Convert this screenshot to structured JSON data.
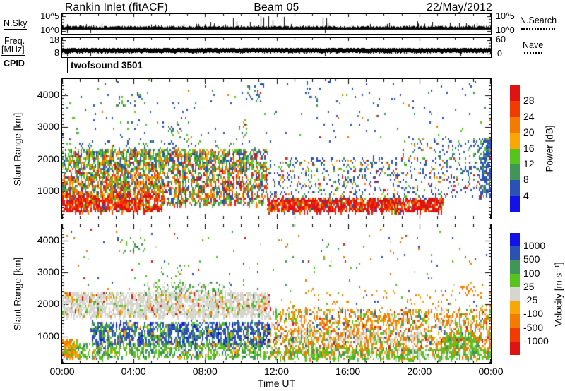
{
  "header": {
    "station_title": "Rankin Inlet (fitACF)",
    "beam": "Beam 05",
    "date": "22/May/2012"
  },
  "left_labels": {
    "nsky": "N.Sky",
    "nsky_top": "10^5",
    "nsky_bottom": "10^0",
    "freq_line1": "Freq.",
    "freq_line2": "[MHz]",
    "freq_top": "18",
    "freq_bottom": "8",
    "cpid": "CPID"
  },
  "right_labels": {
    "nsearch": "N.Search",
    "nsearch_top": "10^5",
    "nsearch_bottom": "10^0",
    "nave": "Nave",
    "nave_top": "60",
    "nave_bottom": "0"
  },
  "cpid_value": "twofsound 3501",
  "axes": {
    "x_title": "Time UT",
    "x_tick_hours": [
      0,
      4,
      8,
      12,
      16,
      20,
      24
    ],
    "x_tick_labels": [
      "00:00",
      "04:00",
      "08:00",
      "12:00",
      "16:00",
      "20:00",
      "00:00"
    ],
    "y_title": "Slant Range [km]",
    "y_tick_values": [
      1000,
      2000,
      3000,
      4000
    ],
    "y_tick_labels": [
      "1000",
      "2000",
      "3000",
      "4000"
    ]
  },
  "palette": {
    "red": "#e11212",
    "redOrange": "#f23b00",
    "orange": "#f57a00",
    "yellowOrange": "#f9a702",
    "green": "#55c41e",
    "teal": "#3f9656",
    "blue": "#2a52b5",
    "brightBlue": "#1212e8",
    "grey": "#d6d6ce"
  },
  "colorbars": {
    "power": {
      "title": "Power [dB]",
      "labels": [
        "28",
        "24",
        "20",
        "16",
        "12",
        "8",
        "4"
      ],
      "colors": [
        "red",
        "redOrange",
        "orange",
        "yellowOrange",
        "green",
        "teal",
        "blue",
        "brightBlue"
      ]
    },
    "velocity": {
      "title": "Velocity [m s⁻¹]",
      "labels": [
        "1000",
        "500",
        "100",
        "25",
        "-25",
        "-100",
        "-500",
        "-1000"
      ],
      "colors": [
        "brightBlue",
        "blue",
        "teal",
        "green",
        "grey",
        "yellowOrange",
        "orange",
        "redOrange",
        "red"
      ]
    }
  },
  "chart_data": {
    "type": "scatter",
    "title": "Rankin Inlet (fitACF) Beam 05 22/May/2012 range-time summary plot",
    "x_range_hours": [
      0,
      24
    ],
    "range_km": [
      150,
      4500
    ],
    "panels": {
      "nsky": {
        "label": "N.Sky",
        "scale": "log 10^0 to 10^5",
        "baseline_log": 1.5,
        "spikes": [
          [
            2.2,
            0.35
          ],
          [
            5.0,
            0.3
          ],
          [
            7.5,
            0.35
          ],
          [
            9.55,
            0.8
          ],
          [
            9.75,
            0.55
          ],
          [
            10.5,
            0.5
          ],
          [
            11.1,
            0.95
          ],
          [
            11.25,
            0.85
          ],
          [
            11.55,
            0.95
          ],
          [
            11.8,
            0.6
          ],
          [
            12.4,
            0.9
          ],
          [
            14.6,
            0.85
          ],
          [
            14.8,
            0.8
          ],
          [
            18.3,
            0.45
          ],
          [
            19.9,
            0.55
          ],
          [
            20.7,
            0.5
          ],
          [
            21.7,
            0.45
          ],
          [
            22.6,
            0.4
          ],
          [
            23.2,
            0.45
          ]
        ],
        "dropouts": [
          0.28,
          1.6,
          14.7
        ]
      },
      "freq": {
        "label": "Freq [MHz]",
        "scale": "8 to 18 MHz",
        "band_mhz": [
          9,
          12
        ],
        "dropouts": [
          0.28,
          1.6,
          14.7,
          22.3
        ]
      },
      "power": {
        "seed": 7,
        "units": "dB",
        "regions": [
          {
            "t": [
              0,
              5.6
            ],
            "r": [
              420,
              950
            ],
            "density": 1.4,
            "streak": true,
            "colors": {
              "red": 0.52,
              "redOrange": 0.2,
              "orange": 0.12,
              "yellowOrange": 0.05,
              "green": 0.06,
              "blue": 0.05
            }
          },
          {
            "t": [
              0,
              5.6
            ],
            "r": [
              950,
              1700
            ],
            "density": 0.9,
            "streak": true,
            "colors": {
              "orange": 0.2,
              "redOrange": 0.12,
              "red": 0.12,
              "green": 0.2,
              "teal": 0.12,
              "yellowOrange": 0.1,
              "blue": 0.14
            }
          },
          {
            "t": [
              0,
              11.5
            ],
            "r": [
              1700,
              2350
            ],
            "density": 0.9,
            "streak": true,
            "colors": {
              "green": 0.26,
              "teal": 0.18,
              "blue": 0.22,
              "orange": 0.12,
              "yellowOrange": 0.12,
              "red": 0.05,
              "redOrange": 0.05
            }
          },
          {
            "t": [
              0,
              11.5
            ],
            "r": [
              2350,
              2600
            ],
            "density": 0.12,
            "colors": {
              "blue": 0.5,
              "teal": 0.2,
              "green": 0.2,
              "orange": 0.1
            }
          },
          {
            "t": [
              5.6,
              11.5
            ],
            "r": [
              620,
              1700
            ],
            "density": 0.7,
            "streak": true,
            "colors": {
              "green": 0.2,
              "orange": 0.16,
              "red": 0.16,
              "redOrange": 0.1,
              "blue": 0.19,
              "teal": 0.12,
              "yellowOrange": 0.07
            }
          },
          {
            "t": [
              11.5,
              21.3
            ],
            "r": [
              420,
              820
            ],
            "density": 1.6,
            "streak": true,
            "colors": {
              "red": 0.62,
              "redOrange": 0.18,
              "orange": 0.08,
              "yellowOrange": 0.04,
              "green": 0.04,
              "blue": 0.04
            }
          },
          {
            "t": [
              11.5,
              24
            ],
            "r": [
              820,
              2100
            ],
            "density": 0.22,
            "colors": {
              "blue": 0.5,
              "teal": 0.13,
              "green": 0.12,
              "orange": 0.1,
              "yellowOrange": 0.05,
              "red": 0.1
            }
          },
          {
            "t": [
              19,
              24
            ],
            "r": [
              2100,
              2700
            ],
            "density": 0.16,
            "colors": {
              "blue": 0.65,
              "teal": 0.15,
              "green": 0.1,
              "orange": 0.1
            }
          },
          {
            "t": [
              0,
              24
            ],
            "r": [
              2600,
              4500
            ],
            "density": 0.02,
            "colors": {
              "blue": 0.6,
              "teal": 0.14,
              "green": 0.12,
              "orange": 0.08,
              "red": 0.06
            }
          },
          {
            "t": [
              3.0,
              4.6
            ],
            "r": [
              3650,
              4100
            ],
            "density": 0.18,
            "colors": {
              "blue": 0.45,
              "teal": 0.3,
              "green": 0.25
            }
          },
          {
            "t": [
              5.3,
              7.1
            ],
            "r": [
              2300,
              3300
            ],
            "density": 0.08,
            "colors": {
              "green": 0.4,
              "teal": 0.3,
              "blue": 0.2,
              "orange": 0.1
            }
          },
          {
            "t": [
              23.3,
              24
            ],
            "r": [
              900,
              2700
            ],
            "density": 0.6,
            "streak": true,
            "colors": {
              "blue": 0.7,
              "teal": 0.15,
              "green": 0.1,
              "orange": 0.05
            }
          },
          {
            "t": [
              10.3,
              11.2
            ],
            "r": [
              3800,
              4450
            ],
            "density": 0.15,
            "colors": {
              "blue": 0.6,
              "teal": 0.25,
              "green": 0.15
            }
          },
          {
            "t": [
              13.6,
              13.9
            ],
            "r": [
              3900,
              4450
            ],
            "density": 0.25,
            "colors": {
              "blue": 0.8,
              "teal": 0.2
            }
          },
          {
            "t": [
              9.8,
              10.4
            ],
            "r": [
              2700,
              3300
            ],
            "density": 0.18,
            "colors": {
              "green": 0.5,
              "teal": 0.3,
              "yellowOrange": 0.1,
              "blue": 0.1
            }
          }
        ]
      },
      "velocity": {
        "seed": 11,
        "units": "m s-1",
        "regions": [
          {
            "t": [
              0,
              11.6
            ],
            "r": [
              1650,
              2400
            ],
            "density": 1.1,
            "streak": true,
            "colors": {
              "grey": 0.8,
              "orange": 0.05,
              "yellowOrange": 0.04,
              "green": 0.05,
              "teal": 0.03,
              "red": 0.03
            }
          },
          {
            "t": [
              4.5,
              9.5
            ],
            "r": [
              2400,
              2750
            ],
            "density": 0.3,
            "streak": true,
            "colors": {
              "grey": 0.6,
              "green": 0.22,
              "teal": 0.18
            }
          },
          {
            "t": [
              1.6,
              11.6
            ],
            "r": [
              750,
              1500
            ],
            "density": 0.9,
            "streak": true,
            "colors": {
              "blue": 0.56,
              "brightBlue": 0.08,
              "teal": 0.14,
              "green": 0.12,
              "yellowOrange": 0.06,
              "orange": 0.04
            }
          },
          {
            "t": [
              0,
              11.6
            ],
            "r": [
              350,
              800
            ],
            "density": 0.7,
            "streak": true,
            "colors": {
              "green": 0.42,
              "teal": 0.25,
              "grey": 0.1,
              "orange": 0.08,
              "yellowOrange": 0.05,
              "blue": 0.1
            }
          },
          {
            "t": [
              0,
              0.8
            ],
            "r": [
              400,
              950
            ],
            "density": 1.2,
            "streak": true,
            "colors": {
              "orange": 0.6,
              "yellowOrange": 0.25,
              "green": 0.15
            }
          },
          {
            "t": [
              11.6,
              24
            ],
            "r": [
              500,
              1900
            ],
            "density": 0.5,
            "streak": true,
            "colors": {
              "orange": 0.42,
              "yellowOrange": 0.15,
              "grey": 0.14,
              "green": 0.16,
              "red": 0.05,
              "teal": 0.04,
              "blue": 0.04
            }
          },
          {
            "t": [
              11.6,
              24
            ],
            "r": [
              300,
              650
            ],
            "density": 0.8,
            "streak": true,
            "colors": {
              "green": 0.5,
              "teal": 0.15,
              "grey": 0.15,
              "orange": 0.15,
              "yellowOrange": 0.05
            }
          },
          {
            "t": [
              21.3,
              23.2
            ],
            "r": [
              500,
              1100
            ],
            "density": 0.9,
            "streak": true,
            "colors": {
              "green": 0.65,
              "teal": 0.15,
              "grey": 0.1,
              "orange": 0.1
            }
          },
          {
            "t": [
              0,
              24
            ],
            "r": [
              2500,
              4500
            ],
            "density": 0.014,
            "colors": {
              "orange": 0.3,
              "red": 0.15,
              "green": 0.2,
              "teal": 0.15,
              "blue": 0.12,
              "grey": 0.08
            }
          },
          {
            "t": [
              3.0,
              4.6
            ],
            "r": [
              3650,
              4100
            ],
            "density": 0.15,
            "colors": {
              "teal": 0.5,
              "green": 0.3,
              "blue": 0.2
            }
          },
          {
            "t": [
              13,
              20
            ],
            "r": [
              850,
              1250
            ],
            "density": 0.35,
            "streak": true,
            "colors": {
              "grey": 0.7,
              "orange": 0.18,
              "green": 0.12
            }
          },
          {
            "t": [
              5.3,
              7.1
            ],
            "r": [
              2300,
              3300
            ],
            "density": 0.08,
            "colors": {
              "green": 0.5,
              "teal": 0.4,
              "orange": 0.1
            }
          },
          {
            "t": [
              22.2,
              23.0
            ],
            "r": [
              2300,
              2700
            ],
            "density": 0.3,
            "colors": {
              "orange": 0.8,
              "yellowOrange": 0.2
            }
          },
          {
            "t": [
              12,
              24
            ],
            "r": [
              1900,
              2500
            ],
            "density": 0.06,
            "colors": {
              "orange": 0.6,
              "yellowOrange": 0.2,
              "green": 0.1,
              "blue": 0.1
            }
          }
        ]
      }
    }
  }
}
